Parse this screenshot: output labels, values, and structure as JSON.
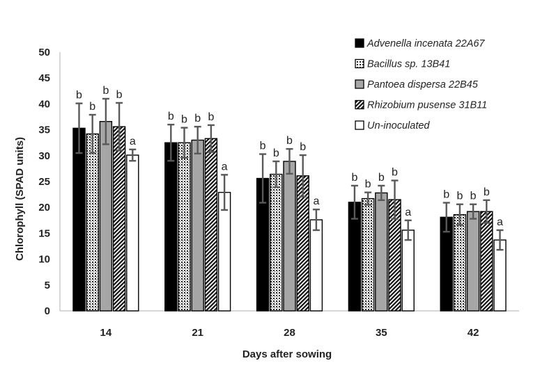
{
  "chart_data": {
    "type": "bar",
    "title": "",
    "xlabel": "Days after sowing",
    "ylabel": "Chlorophyll (SPAD  units)",
    "ylim": [
      0,
      50
    ],
    "yticks": [
      0,
      5,
      10,
      15,
      20,
      25,
      30,
      35,
      40,
      45,
      50
    ],
    "categories": [
      "14",
      "21",
      "28",
      "35",
      "42"
    ],
    "grid": false,
    "legend_position": "top-right",
    "series": [
      {
        "name": "Advenella incenata 22A67",
        "pattern": "solid-black",
        "values": [
          35.3,
          32.5,
          25.6,
          21.0,
          18.1
        ],
        "errors": [
          4.8,
          3.5,
          4.7,
          3.2,
          2.8
        ],
        "labels": [
          "b",
          "b",
          "b",
          "b",
          "b"
        ]
      },
      {
        "name": "Bacillus sp. 13B41",
        "pattern": "dots",
        "values": [
          34.2,
          32.5,
          26.4,
          21.7,
          18.6
        ],
        "errors": [
          3.7,
          2.9,
          2.5,
          1.2,
          2.0
        ],
        "labels": [
          "b",
          "b",
          "b",
          "b",
          "b"
        ]
      },
      {
        "name": "Pantoea dispersa 22B45",
        "pattern": "gray",
        "values": [
          36.6,
          33.0,
          28.9,
          22.8,
          19.2
        ],
        "errors": [
          4.4,
          2.6,
          2.4,
          1.4,
          1.4
        ],
        "labels": [
          "b",
          "b",
          "b",
          "b",
          "b"
        ]
      },
      {
        "name": "Rhizobium pusense 31B11",
        "pattern": "diagonal",
        "values": [
          35.6,
          33.3,
          26.1,
          21.5,
          19.2
        ],
        "errors": [
          4.6,
          2.6,
          4.0,
          3.7,
          2.2
        ],
        "labels": [
          "b",
          "b",
          "b",
          "b",
          "b"
        ]
      },
      {
        "name": "Un-inoculated",
        "pattern": "white",
        "values": [
          30.1,
          22.9,
          17.6,
          15.6,
          13.7
        ],
        "errors": [
          1.1,
          3.4,
          2.0,
          1.9,
          1.9
        ],
        "labels": [
          "a",
          "a",
          "a",
          "a",
          "a"
        ]
      }
    ]
  }
}
